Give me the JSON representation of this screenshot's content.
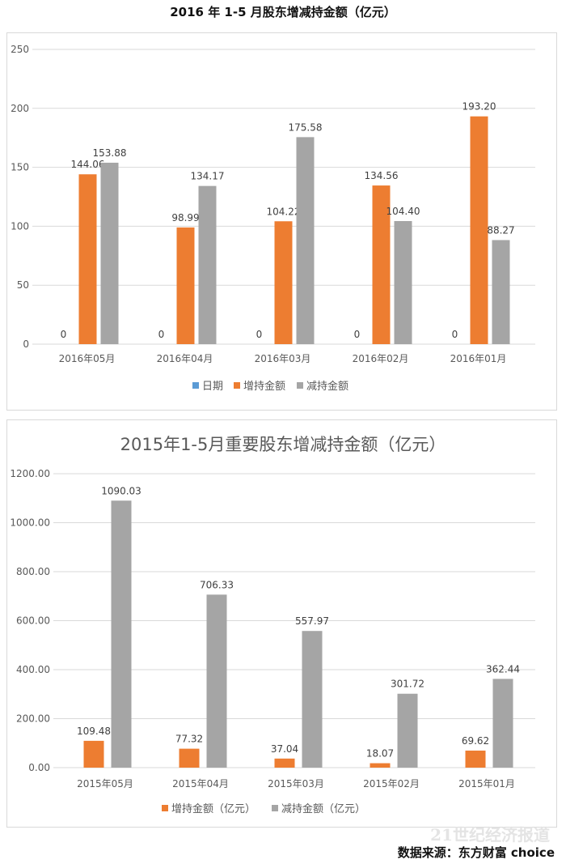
{
  "page_title": "2016 年 1-5 月股东增减持金额（亿元）",
  "source": "数据来源：东方财富 choice",
  "watermark": "21世纪经济报道",
  "chart_data": [
    {
      "type": "bar",
      "title": "",
      "categories": [
        "2016年05月",
        "2016年04月",
        "2016年03月",
        "2016年02月",
        "2016年01月"
      ],
      "series": [
        {
          "name": "日期",
          "color": "#5b9bd5",
          "values": [
            0,
            0,
            0,
            0,
            0
          ],
          "labels": [
            "0",
            "0",
            "0",
            "0",
            "0"
          ]
        },
        {
          "name": "增持金额",
          "color": "#ed7d31",
          "values": [
            144.06,
            98.99,
            104.22,
            134.56,
            193.2
          ],
          "labels": [
            "144.06",
            "98.99",
            "104.22",
            "134.56",
            "193.20"
          ]
        },
        {
          "name": "减持金额",
          "color": "#a5a5a5",
          "values": [
            153.88,
            134.17,
            175.58,
            104.4,
            88.27
          ],
          "labels": [
            "153.88",
            "134.17",
            "175.58",
            "104.40",
            "88.27"
          ]
        }
      ],
      "ylim": [
        0,
        250
      ],
      "yticks": [
        "0",
        "50",
        "100",
        "150",
        "200",
        "250"
      ],
      "grid": true,
      "legend": "bottom"
    },
    {
      "type": "bar",
      "title": "2015年1-5月重要股东增减持金额（亿元）",
      "categories": [
        "2015年05月",
        "2015年04月",
        "2015年03月",
        "2015年02月",
        "2015年01月"
      ],
      "series": [
        {
          "name": "增持金额（亿元）",
          "color": "#ed7d31",
          "values": [
            109.48,
            77.32,
            37.04,
            18.07,
            69.62
          ],
          "labels": [
            "109.48",
            "77.32",
            "37.04",
            "18.07",
            "69.62"
          ]
        },
        {
          "name": "减持金额（亿元）",
          "color": "#a5a5a5",
          "values": [
            1090.03,
            706.33,
            557.97,
            301.72,
            362.44
          ],
          "labels": [
            "1090.03",
            "706.33",
            "557.97",
            "301.72",
            "362.44"
          ]
        }
      ],
      "ylim": [
        0,
        1200
      ],
      "yticks": [
        "0.00",
        "200.00",
        "400.00",
        "600.00",
        "800.00",
        "1000.00",
        "1200.00"
      ],
      "grid": true,
      "legend": "bottom"
    }
  ]
}
